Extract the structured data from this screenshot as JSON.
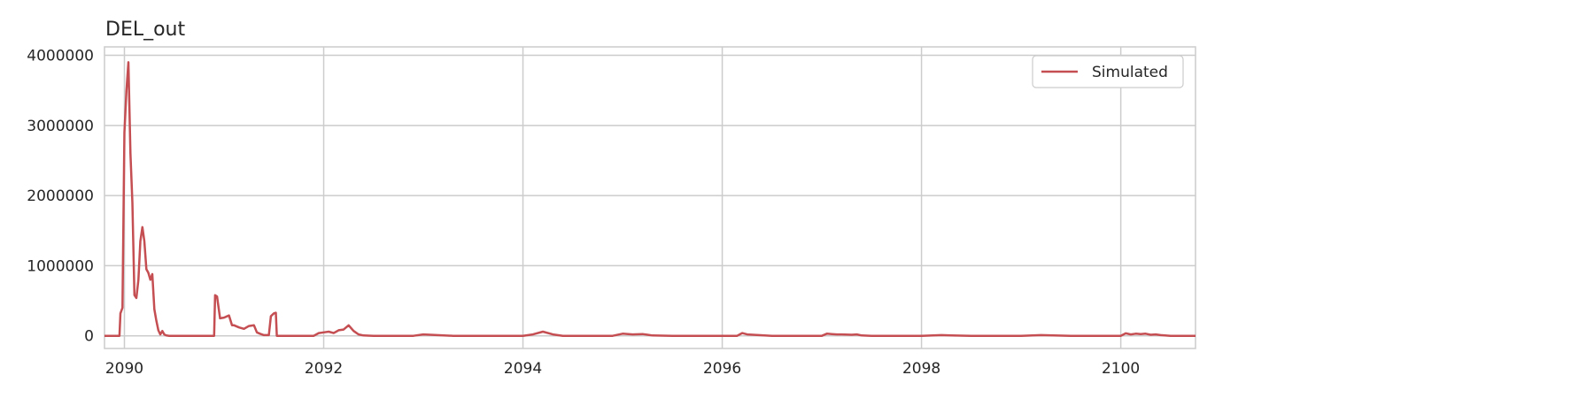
{
  "chart_data": {
    "type": "line",
    "title": "DEL_out",
    "xlabel": "",
    "ylabel": "",
    "xlim": [
      2089.8,
      2100.75
    ],
    "ylim": [
      -180000,
      4120000
    ],
    "x_ticks": [
      2090,
      2092,
      2094,
      2096,
      2098,
      2100
    ],
    "x_tick_labels": [
      "2090",
      "2092",
      "2094",
      "2096",
      "2098",
      "2100"
    ],
    "y_ticks": [
      0,
      1000000,
      2000000,
      3000000,
      4000000
    ],
    "y_tick_labels": [
      "0",
      "1000000",
      "2000000",
      "3000000",
      "4000000"
    ],
    "grid": true,
    "legend_position": "top-right",
    "series": [
      {
        "name": "Simulated",
        "color": "#c44e52",
        "x": [
          2089.8,
          2089.95,
          2089.96,
          2089.98,
          2090.0,
          2090.02,
          2090.04,
          2090.06,
          2090.08,
          2090.1,
          2090.12,
          2090.14,
          2090.16,
          2090.18,
          2090.2,
          2090.22,
          2090.24,
          2090.26,
          2090.28,
          2090.3,
          2090.32,
          2090.34,
          2090.36,
          2090.38,
          2090.4,
          2090.42,
          2090.45,
          2090.5,
          2090.6,
          2090.9,
          2090.91,
          2090.93,
          2090.96,
          2091.0,
          2091.05,
          2091.08,
          2091.1,
          2091.15,
          2091.2,
          2091.25,
          2091.3,
          2091.33,
          2091.36,
          2091.4,
          2091.45,
          2091.47,
          2091.5,
          2091.52,
          2091.53,
          2091.6,
          2091.9,
          2091.95,
          2092.0,
          2092.05,
          2092.1,
          2092.15,
          2092.2,
          2092.25,
          2092.3,
          2092.35,
          2092.4,
          2092.5,
          2092.9,
          2093.0,
          2093.3,
          2093.4,
          2094.0,
          2094.1,
          2094.2,
          2094.3,
          2094.4,
          2094.9,
          2095.0,
          2095.1,
          2095.2,
          2095.25,
          2095.3,
          2095.5,
          2096.15,
          2096.2,
          2096.25,
          2096.5,
          2097.0,
          2097.05,
          2097.1,
          2097.15,
          2097.2,
          2097.3,
          2097.35,
          2097.4,
          2097.5,
          2098.0,
          2098.2,
          2098.3,
          2098.5,
          2099.0,
          2099.2,
          2099.5,
          2100.0,
          2100.05,
          2100.1,
          2100.15,
          2100.2,
          2100.25,
          2100.3,
          2100.35,
          2100.4,
          2100.5,
          2100.75
        ],
        "y": [
          0,
          0,
          320000,
          400000,
          2900000,
          3500000,
          3900000,
          2600000,
          1900000,
          580000,
          540000,
          800000,
          1350000,
          1550000,
          1350000,
          950000,
          900000,
          800000,
          880000,
          380000,
          220000,
          80000,
          20000,
          70000,
          20000,
          5000,
          0,
          0,
          0,
          0,
          580000,
          560000,
          250000,
          260000,
          290000,
          150000,
          150000,
          120000,
          100000,
          140000,
          150000,
          50000,
          30000,
          10000,
          10000,
          280000,
          320000,
          330000,
          0,
          0,
          0,
          40000,
          50000,
          60000,
          40000,
          80000,
          90000,
          150000,
          70000,
          20000,
          5000,
          0,
          0,
          20000,
          0,
          0,
          0,
          20000,
          60000,
          20000,
          0,
          0,
          30000,
          20000,
          25000,
          15000,
          5000,
          0,
          0,
          40000,
          20000,
          0,
          0,
          30000,
          25000,
          20000,
          20000,
          15000,
          20000,
          5000,
          0,
          0,
          10000,
          5000,
          0,
          0,
          10000,
          0,
          0,
          35000,
          20000,
          30000,
          25000,
          30000,
          15000,
          20000,
          10000,
          0,
          0
        ]
      }
    ]
  }
}
